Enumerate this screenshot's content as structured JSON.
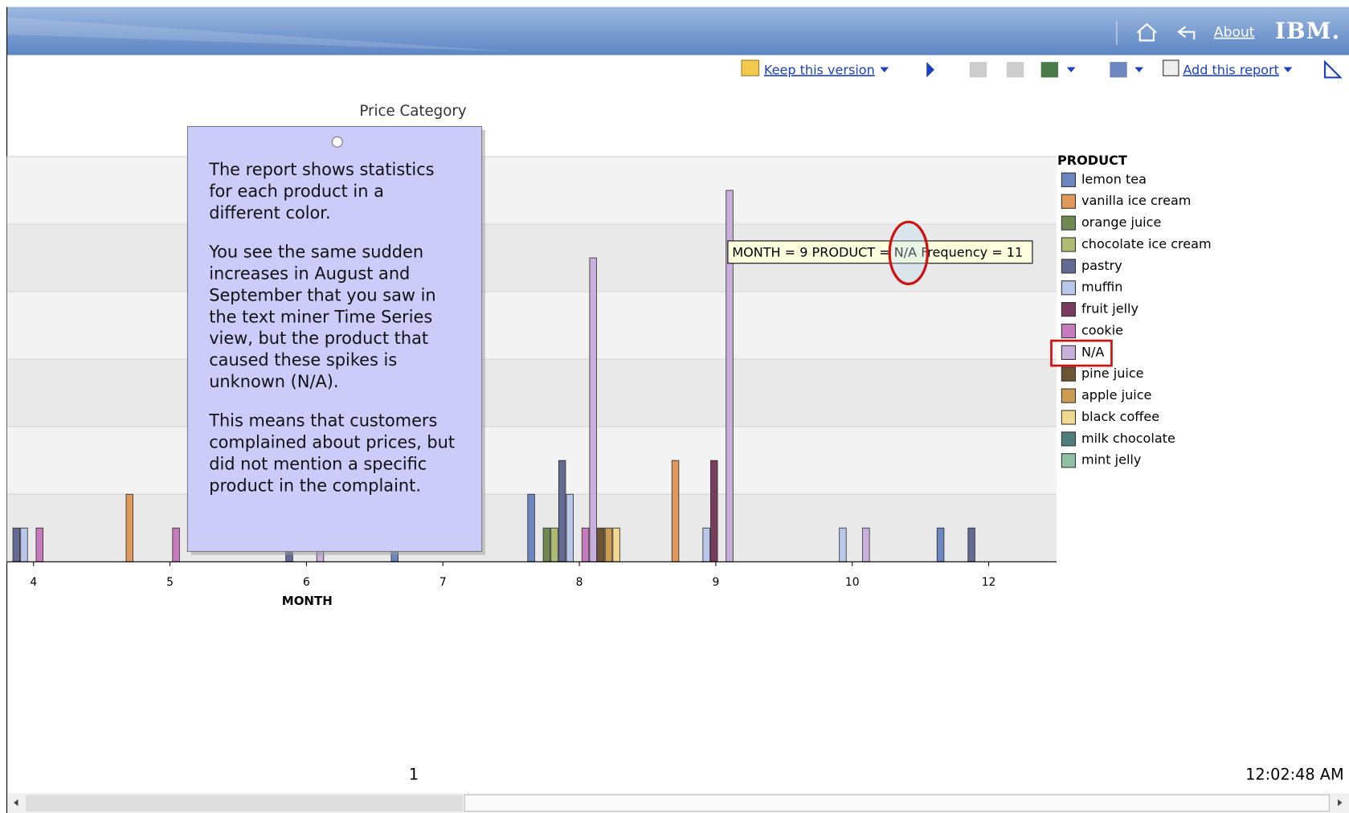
{
  "header": {
    "about": "About",
    "logo": "IBM."
  },
  "toolbar": {
    "keep": "Keep this version",
    "add": "Add this report"
  },
  "chart_data": {
    "type": "bar",
    "title": "Price Category",
    "x_label": "MONTH",
    "categories": [
      "4",
      "5",
      "6",
      "7",
      "8",
      "9",
      "10",
      "12"
    ],
    "ylim": [
      0,
      12
    ],
    "yticks": [
      0,
      2,
      4,
      6,
      8,
      10,
      12
    ],
    "grid": true,
    "legend_title": "PRODUCT",
    "legend": "right",
    "series": [
      {
        "name": "lemon tea",
        "color": "#6b86c0",
        "values": [
          null,
          null,
          null,
          1,
          2,
          null,
          null,
          1
        ]
      },
      {
        "name": "vanilla ice cream",
        "color": "#e0995a",
        "values": [
          null,
          2,
          null,
          null,
          null,
          3,
          null,
          null
        ]
      },
      {
        "name": "orange juice",
        "color": "#6e8a52",
        "values": [
          null,
          null,
          null,
          null,
          1,
          null,
          null,
          null
        ]
      },
      {
        "name": "chocolate ice cream",
        "color": "#aebc73",
        "values": [
          null,
          null,
          null,
          null,
          1,
          null,
          null,
          null
        ]
      },
      {
        "name": "pastry",
        "color": "#646b92",
        "values": [
          1,
          null,
          1,
          null,
          3,
          null,
          null,
          1
        ]
      },
      {
        "name": "muffin",
        "color": "#b9c8ea",
        "values": [
          1,
          null,
          null,
          null,
          2,
          1,
          1,
          null
        ]
      },
      {
        "name": "fruit jelly",
        "color": "#7a3c5c",
        "values": [
          null,
          null,
          null,
          null,
          null,
          3,
          null,
          null
        ]
      },
      {
        "name": "cookie",
        "color": "#c77bbe",
        "values": [
          1,
          1,
          null,
          null,
          1,
          null,
          null,
          null
        ]
      },
      {
        "name": "N/A",
        "color": "#c9b0dc",
        "values": [
          null,
          null,
          1,
          null,
          9,
          11,
          1,
          null
        ]
      },
      {
        "name": "pine juice",
        "color": "#6d5432",
        "values": [
          null,
          null,
          null,
          null,
          1,
          null,
          null,
          null
        ]
      },
      {
        "name": "apple juice",
        "color": "#cc9c52",
        "values": [
          null,
          null,
          null,
          null,
          1,
          null,
          null,
          null
        ]
      },
      {
        "name": "black coffee",
        "color": "#f0d890",
        "values": [
          null,
          null,
          null,
          null,
          1,
          null,
          null,
          null
        ]
      },
      {
        "name": "milk chocolate",
        "color": "#4f7f7c",
        "values": [
          null,
          null,
          null,
          null,
          null,
          null,
          null,
          null
        ]
      },
      {
        "name": "mint jelly",
        "color": "#8fc0a4",
        "values": [
          null,
          null,
          null,
          null,
          null,
          null,
          null,
          null
        ]
      }
    ]
  },
  "callout": {
    "paragraphs": [
      [
        "The report shows statistics",
        "for each product in a",
        "different color."
      ],
      [
        "You see the same sudden",
        "increases in August and",
        "September that you saw in",
        "the text miner Time Series",
        "view, but the product that",
        "caused these spikes is",
        "unknown (N/A)."
      ],
      [
        "This means that customers",
        "complained about prices, but",
        "did not mention a specific",
        "product in the complaint."
      ]
    ]
  },
  "tooltip": {
    "text": "MONTH = 9 PRODUCT = N/A Frequency = 11"
  },
  "footer": {
    "page": "1",
    "time": "12:02:48 AM"
  }
}
